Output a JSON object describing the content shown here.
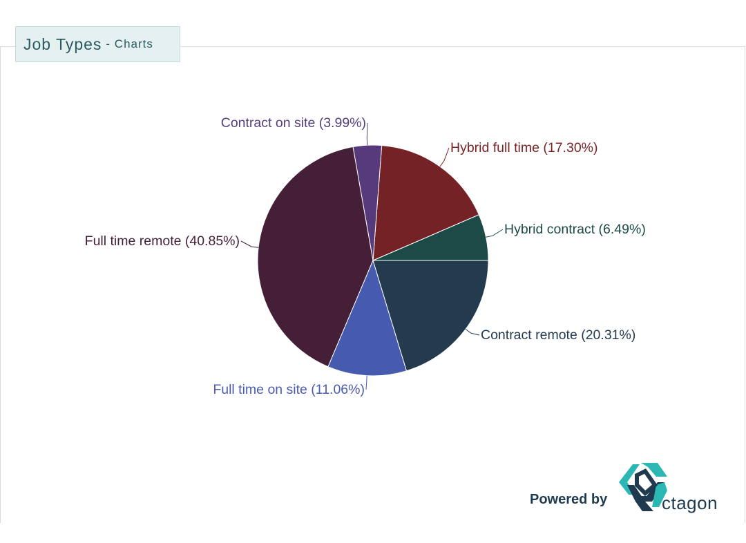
{
  "header": {
    "title": "Job Types",
    "subtitle": "- Charts"
  },
  "footer": {
    "powered_by": "Powered by",
    "brand_text": "ctagon"
  },
  "chart_data": {
    "type": "pie",
    "title": "",
    "legend": "none",
    "start_angle_deg": 90,
    "direction": "counterclockwise-from-east",
    "slices": [
      {
        "label": "Hybrid contract",
        "value": 6.49,
        "display": "Hybrid contract (6.49%)",
        "color": "#1b4a47",
        "text_color": "#1b4a47"
      },
      {
        "label": "Hybrid full time",
        "value": 17.3,
        "display": "Hybrid full time (17.30%)",
        "color": "#742225",
        "text_color": "#7a2326"
      },
      {
        "label": "Contract on site",
        "value": 3.99,
        "display": "Contract on site (3.99%)",
        "color": "#563a7c",
        "text_color": "#55407f"
      },
      {
        "label": "Full time remote",
        "value": 40.85,
        "display": "Full time remote (40.85%)",
        "color": "#451f37",
        "text_color": "#451f37"
      },
      {
        "label": "Full time on site",
        "value": 11.06,
        "display": "Full time on site (11.06%)",
        "color": "#465ab0",
        "text_color": "#4a5bb0"
      },
      {
        "label": "Contract remote",
        "value": 20.31,
        "display": "Contract remote (20.31%)",
        "color": "#243a4e",
        "text_color": "#243a4e"
      }
    ]
  },
  "logo_colors": {
    "teal": "#2bb8b4",
    "navy": "#1f3a4f"
  }
}
